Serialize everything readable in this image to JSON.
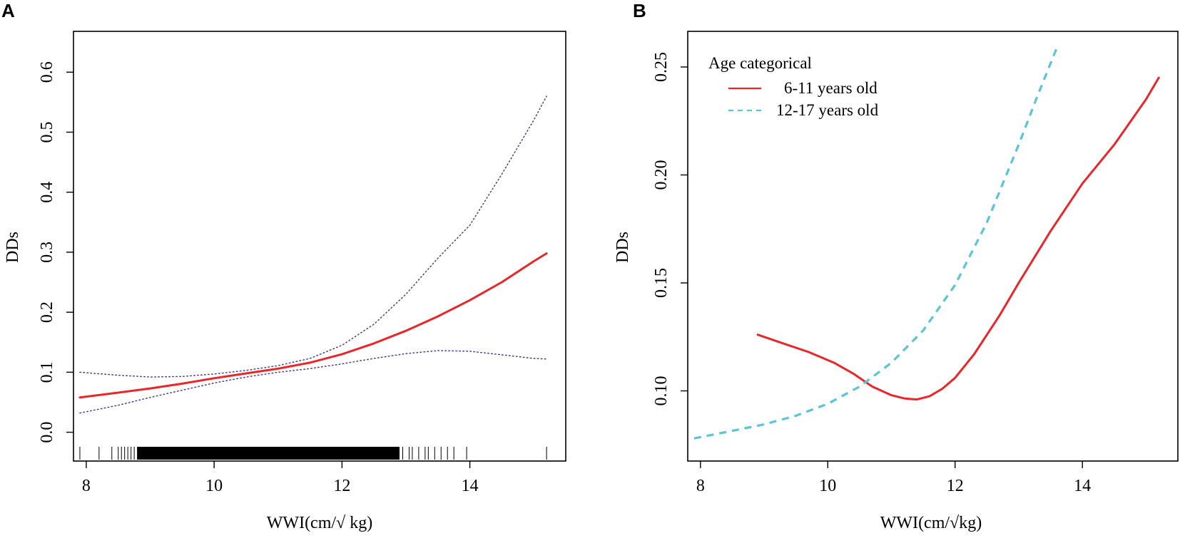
{
  "chart_data": [
    {
      "panel": "A",
      "type": "line",
      "xlabel": "WWI(cm/√ kg)",
      "ylabel": "DDs",
      "xlim": [
        7.8,
        15.5
      ],
      "ylim": [
        -0.048,
        0.668
      ],
      "xticks": [
        8,
        10,
        12,
        14
      ],
      "xtick_labels": [
        "8",
        "10",
        "12",
        "14"
      ],
      "yticks": [
        0.0,
        0.1,
        0.2,
        0.3,
        0.4,
        0.5,
        0.6
      ],
      "ytick_labels": [
        "0.0",
        "0.1",
        "0.2",
        "0.3",
        "0.4",
        "0.5",
        "0.6"
      ],
      "series": [
        {
          "name": "estimate",
          "style": "solid",
          "color": "#e8272b",
          "x": [
            7.9,
            8.5,
            9.0,
            9.5,
            10.0,
            10.5,
            11.0,
            11.5,
            12.0,
            12.5,
            13.0,
            13.5,
            14.0,
            14.5,
            15.0,
            15.2
          ],
          "y": [
            0.058,
            0.066,
            0.073,
            0.081,
            0.09,
            0.098,
            0.106,
            0.116,
            0.13,
            0.148,
            0.169,
            0.193,
            0.22,
            0.25,
            0.285,
            0.298
          ]
        },
        {
          "name": "upper 95% CI",
          "style": "dotted",
          "color": "#4a3f8e",
          "x": [
            7.9,
            8.5,
            9.0,
            9.5,
            10.0,
            10.5,
            11.0,
            11.5,
            12.0,
            12.5,
            13.0,
            13.5,
            14.0,
            14.5,
            15.0,
            15.2
          ],
          "y": [
            0.1,
            0.095,
            0.092,
            0.093,
            0.097,
            0.103,
            0.111,
            0.123,
            0.145,
            0.18,
            0.23,
            0.29,
            0.345,
            0.43,
            0.52,
            0.56
          ]
        },
        {
          "name": "lower 95% CI",
          "style": "dotted",
          "color": "#4a3f8e",
          "x": [
            7.9,
            8.5,
            9.0,
            9.5,
            10.0,
            10.5,
            11.0,
            11.5,
            12.0,
            12.5,
            13.0,
            13.5,
            14.0,
            14.5,
            15.0,
            15.2
          ],
          "y": [
            0.032,
            0.045,
            0.058,
            0.07,
            0.082,
            0.092,
            0.1,
            0.106,
            0.114,
            0.123,
            0.131,
            0.136,
            0.135,
            0.129,
            0.123,
            0.122
          ]
        }
      ],
      "rug": {
        "sparse_x": [
          7.9,
          8.2,
          8.4,
          8.5,
          8.55,
          8.6,
          8.65,
          8.7,
          8.75,
          8.8,
          12.95,
          13.05,
          13.1,
          13.2,
          13.3,
          13.35,
          13.45,
          13.55,
          13.65,
          13.75,
          13.95,
          15.2
        ],
        "dense_range": [
          8.8,
          12.9
        ]
      }
    },
    {
      "panel": "B",
      "type": "line",
      "xlabel": "WWI(cm/√kg)",
      "ylabel": "DDs",
      "xlim": [
        7.8,
        15.5
      ],
      "ylim": [
        0.0675,
        0.2665
      ],
      "xticks": [
        8,
        10,
        12,
        14
      ],
      "xtick_labels": [
        "8",
        "10",
        "12",
        "14"
      ],
      "yticks": [
        0.1,
        0.15,
        0.2,
        0.25
      ],
      "ytick_labels": [
        "0.10",
        "0.15",
        "0.20",
        "0.25"
      ],
      "legend": {
        "title": "Age categorical",
        "position": "top-left",
        "entries": [
          "6-11 years old",
          "12-17 years old"
        ]
      },
      "series": [
        {
          "name": "6-11 years old",
          "style": "solid",
          "color": "#e8272b",
          "x": [
            8.9,
            9.3,
            9.7,
            10.1,
            10.4,
            10.7,
            11.0,
            11.2,
            11.4,
            11.6,
            11.8,
            12.0,
            12.3,
            12.7,
            13.0,
            13.5,
            14.0,
            14.5,
            15.0,
            15.2
          ],
          "y": [
            0.126,
            0.122,
            0.118,
            0.113,
            0.108,
            0.102,
            0.098,
            0.0965,
            0.096,
            0.0975,
            0.101,
            0.106,
            0.117,
            0.135,
            0.15,
            0.174,
            0.196,
            0.214,
            0.235,
            0.245
          ]
        },
        {
          "name": "12-17 years old",
          "style": "dashed",
          "color": "#5bc4d6",
          "x": [
            7.9,
            8.5,
            9.0,
            9.5,
            10.0,
            10.5,
            11.0,
            11.5,
            12.0,
            12.5,
            13.0,
            13.3,
            13.6
          ],
          "y": [
            0.078,
            0.0815,
            0.0845,
            0.0885,
            0.094,
            0.102,
            0.113,
            0.128,
            0.149,
            0.178,
            0.214,
            0.237,
            0.259
          ]
        }
      ]
    }
  ]
}
